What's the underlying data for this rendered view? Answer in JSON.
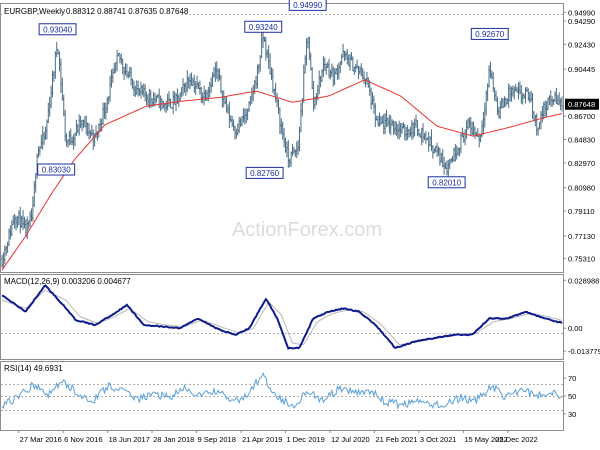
{
  "header": {
    "symbol": "EURGBP,Weekly",
    "ohlc": "0.88312 0.88741 0.87635 0.87648"
  },
  "watermark": "ActionForex.com",
  "colors": {
    "price": "#4a6d86",
    "ma": "#e8322e",
    "macd": "#0d1b8c",
    "signal": "#b8b8b8",
    "rsi": "#5aa0d8",
    "grid": "#c8c8c8",
    "current_box": "#000000",
    "label_border": "#1a2ea0",
    "label_text": "#1a2ea0"
  },
  "chart_data": [
    {
      "type": "line",
      "name": "price-panel",
      "ylim": [
        0.744,
        0.955
      ],
      "y_ticks": [
        "0.94990",
        "0.94290",
        "0.92430",
        "0.90445",
        "0.87648",
        "0.86700",
        "0.84830",
        "0.82970",
        "0.80980",
        "0.79110",
        "0.77130",
        "0.75310"
      ],
      "current_value": "0.87648",
      "x_ticks": [
        "27 Mar 2016",
        "6 Nov 2016",
        "18 Jun 2017",
        "28 Jan 2018",
        "9 Sep 2018",
        "21 Apr 2019",
        "1 Dec 2019",
        "12 Jul 2020",
        "21 Feb 2021",
        "3 Oct 2021",
        "15 May 2022",
        "25 Dec 2022"
      ],
      "annotations": [
        {
          "label": "0.93040",
          "x": "2016-10-09",
          "y": 0.9304
        },
        {
          "label": "0.83030",
          "x": "2016-10-02",
          "y": 0.8303
        },
        {
          "label": "0.93240",
          "x": "2019-08-11",
          "y": 0.9324
        },
        {
          "label": "0.82760",
          "x": "2019-08-18",
          "y": 0.8276
        },
        {
          "label": "0.94990",
          "x": "2020-03-22",
          "y": 0.9499
        },
        {
          "label": "0.82010",
          "x": "2022-02-20",
          "y": 0.8201
        },
        {
          "label": "0.92670",
          "x": "2022-09-25",
          "y": 0.9267
        }
      ],
      "series": [
        {
          "x": [
            "2016-01-03",
            "2016-02-07",
            "2016-03-06",
            "2016-04-03",
            "2016-05-01",
            "2016-06-05",
            "2016-06-26",
            "2016-08-07",
            "2016-10-09",
            "2016-11-20",
            "2016-12-25",
            "2017-02-05",
            "2017-04-16",
            "2017-06-04",
            "2017-08-13",
            "2017-09-24",
            "2017-11-19",
            "2018-01-21",
            "2018-04-01",
            "2018-06-03",
            "2018-08-05",
            "2018-10-14",
            "2018-12-16",
            "2019-02-17",
            "2019-03-24",
            "2019-05-26",
            "2019-07-14",
            "2019-08-11",
            "2019-09-29",
            "2019-11-10",
            "2019-12-15",
            "2020-02-02",
            "2020-03-22",
            "2020-04-19",
            "2020-06-14",
            "2020-08-02",
            "2020-09-13",
            "2020-11-15",
            "2021-01-10",
            "2021-03-07",
            "2021-05-16",
            "2021-07-18",
            "2021-09-19",
            "2021-11-21",
            "2022-01-09",
            "2022-02-20",
            "2022-04-10",
            "2022-06-12",
            "2022-08-07",
            "2022-09-25",
            "2022-11-06",
            "2023-01-08",
            "2023-02-26",
            "2023-04-09",
            "2023-05-21",
            "2023-07-02",
            "2023-08-13",
            "2023-09-24"
          ],
          "values": [
            0.753,
            0.771,
            0.788,
            0.784,
            0.773,
            0.788,
            0.838,
            0.851,
            0.927,
            0.846,
            0.851,
            0.862,
            0.849,
            0.874,
            0.915,
            0.901,
            0.886,
            0.882,
            0.876,
            0.879,
            0.898,
            0.883,
            0.903,
            0.868,
            0.856,
            0.87,
            0.903,
            0.931,
            0.892,
            0.858,
            0.832,
            0.841,
            0.935,
            0.876,
            0.91,
            0.898,
            0.916,
            0.906,
            0.897,
            0.86,
            0.861,
            0.854,
            0.859,
            0.847,
            0.837,
            0.826,
            0.841,
            0.86,
            0.849,
            0.905,
            0.87,
            0.887,
            0.883,
            0.884,
            0.858,
            0.876,
            0.881,
            0.8765
          ]
        },
        {
          "name": "moving average",
          "x": [
            "2016-01-03",
            "2016-05-01",
            "2016-09-04",
            "2017-01-01",
            "2017-06-04",
            "2017-12-31",
            "2018-07-01",
            "2019-01-06",
            "2019-07-07",
            "2020-01-05",
            "2020-07-05",
            "2021-01-03",
            "2021-07-04",
            "2022-01-02",
            "2022-07-03",
            "2023-01-01",
            "2023-07-02",
            "2023-09-24"
          ],
          "values": [
            0.744,
            0.771,
            0.804,
            0.832,
            0.86,
            0.875,
            0.879,
            0.882,
            0.887,
            0.878,
            0.883,
            0.896,
            0.883,
            0.859,
            0.851,
            0.858,
            0.866,
            0.869
          ]
        }
      ]
    },
    {
      "type": "line",
      "name": "macd-panel",
      "title": "MACD(12,26,9) 0.003206 0.004677",
      "ylim": [
        -0.018,
        0.031
      ],
      "y_ticks": [
        "0.028988",
        "0.00",
        "-0.013779"
      ],
      "series": [
        {
          "x": [
            "2016-01-03",
            "2016-05-01",
            "2016-08-07",
            "2016-10-30",
            "2017-01-08",
            "2017-04-16",
            "2017-07-09",
            "2017-09-24",
            "2017-12-17",
            "2018-03-18",
            "2018-06-17",
            "2018-09-16",
            "2018-12-16",
            "2019-03-24",
            "2019-06-02",
            "2019-08-25",
            "2019-10-20",
            "2019-12-15",
            "2020-02-09",
            "2020-04-19",
            "2020-07-05",
            "2020-09-20",
            "2020-12-06",
            "2021-02-28",
            "2021-06-06",
            "2021-09-12",
            "2021-12-19",
            "2022-03-27",
            "2022-06-26",
            "2022-09-25",
            "2022-12-25",
            "2023-03-26",
            "2023-06-25",
            "2023-09-24"
          ],
          "values": [
            0.02,
            0.01,
            0.026,
            0.015,
            0.005,
            0.002,
            0.008,
            0.014,
            0.002,
            0.001,
            0.0,
            0.006,
            0.0,
            -0.004,
            0.0,
            0.018,
            0.006,
            -0.012,
            -0.012,
            0.006,
            0.01,
            0.012,
            0.01,
            0.002,
            -0.012,
            -0.008,
            -0.006,
            -0.004,
            -0.004,
            0.006,
            0.006,
            0.01,
            0.006,
            0.0032
          ]
        },
        {
          "x": [
            "2016-01-03",
            "2016-05-01",
            "2016-08-07",
            "2016-11-20",
            "2017-01-29",
            "2017-04-30",
            "2017-07-23",
            "2017-10-08",
            "2018-01-07",
            "2018-04-08",
            "2018-07-08",
            "2018-10-07",
            "2019-01-06",
            "2019-04-14",
            "2019-06-23",
            "2019-09-08",
            "2019-11-10",
            "2020-01-05",
            "2020-03-01",
            "2020-05-10",
            "2020-07-26",
            "2020-10-11",
            "2020-12-27",
            "2021-03-21",
            "2021-06-27",
            "2021-10-03",
            "2022-01-09",
            "2022-04-17",
            "2022-07-17",
            "2022-10-16",
            "2023-01-15",
            "2023-04-16",
            "2023-07-16",
            "2023-09-24"
          ],
          "values": [
            0.017,
            0.012,
            0.023,
            0.017,
            0.007,
            0.003,
            0.007,
            0.012,
            0.004,
            0.002,
            0.001,
            0.005,
            0.001,
            -0.003,
            0.0,
            0.016,
            0.008,
            -0.009,
            -0.01,
            0.004,
            0.009,
            0.011,
            0.01,
            0.003,
            -0.01,
            -0.008,
            -0.006,
            -0.004,
            -0.003,
            0.004,
            0.006,
            0.009,
            0.007,
            0.0047
          ]
        }
      ]
    },
    {
      "type": "line",
      "name": "rsi-panel",
      "title": "RSI(14) 49.6931",
      "ylim": [
        13,
        87
      ],
      "y_ticks": [
        "70",
        "50",
        "30"
      ],
      "series": [
        {
          "x": [
            "2016-01-03",
            "2016-03-20",
            "2016-06-05",
            "2016-08-21",
            "2016-11-06",
            "2017-01-22",
            "2017-04-09",
            "2017-06-25",
            "2017-09-10",
            "2017-11-26",
            "2018-02-11",
            "2018-04-29",
            "2018-07-15",
            "2018-09-30",
            "2018-12-16",
            "2019-03-03",
            "2019-05-19",
            "2019-08-04",
            "2019-10-20",
            "2020-01-05",
            "2020-03-22",
            "2020-06-07",
            "2020-08-23",
            "2020-11-08",
            "2021-01-24",
            "2021-04-11",
            "2021-06-27",
            "2021-09-12",
            "2021-11-28",
            "2022-02-13",
            "2022-05-01",
            "2022-07-17",
            "2022-10-02",
            "2022-12-18",
            "2023-03-05",
            "2023-05-21",
            "2023-08-06",
            "2023-09-24"
          ],
          "values": [
            40,
            48,
            62,
            52,
            66,
            52,
            45,
            62,
            54,
            47,
            52,
            49,
            58,
            50,
            56,
            44,
            49,
            74,
            50,
            38,
            56,
            44,
            57,
            54,
            57,
            44,
            40,
            43,
            41,
            40,
            48,
            44,
            62,
            48,
            58,
            50,
            55,
            49.69
          ]
        }
      ]
    }
  ]
}
